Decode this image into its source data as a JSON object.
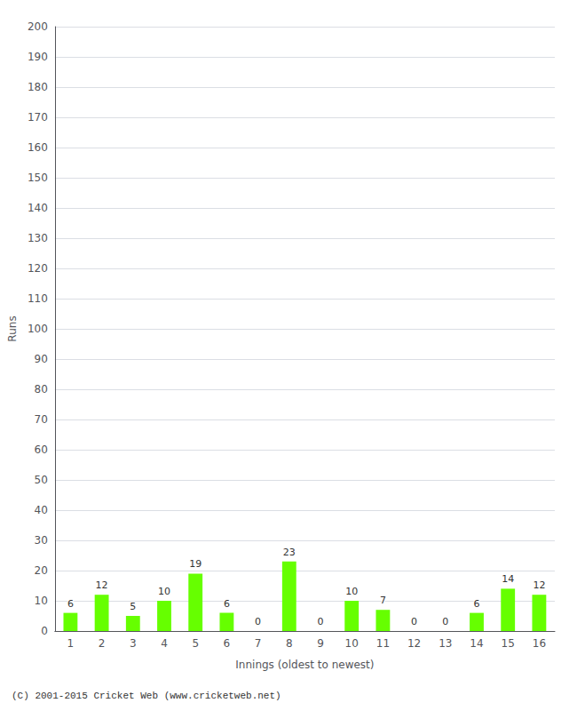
{
  "chart_data": {
    "type": "bar",
    "xlabel": "Innings (oldest to newest)",
    "ylabel": "Runs",
    "categories": [
      1,
      2,
      3,
      4,
      5,
      6,
      7,
      8,
      9,
      10,
      11,
      12,
      13,
      14,
      15,
      16
    ],
    "values": [
      6,
      12,
      5,
      10,
      19,
      6,
      0,
      23,
      0,
      10,
      7,
      0,
      0,
      6,
      14,
      12
    ],
    "color": "#66ff00",
    "ylim": [
      0,
      200
    ],
    "yticks": [
      0,
      10,
      20,
      30,
      40,
      50,
      60,
      70,
      80,
      90,
      100,
      110,
      120,
      130,
      140,
      150,
      160,
      170,
      180,
      190,
      200
    ],
    "grid": true,
    "data_labels": true,
    "annotations": [
      "(C) 2001-2015 Cricket Web (www.cricketweb.net)"
    ]
  }
}
